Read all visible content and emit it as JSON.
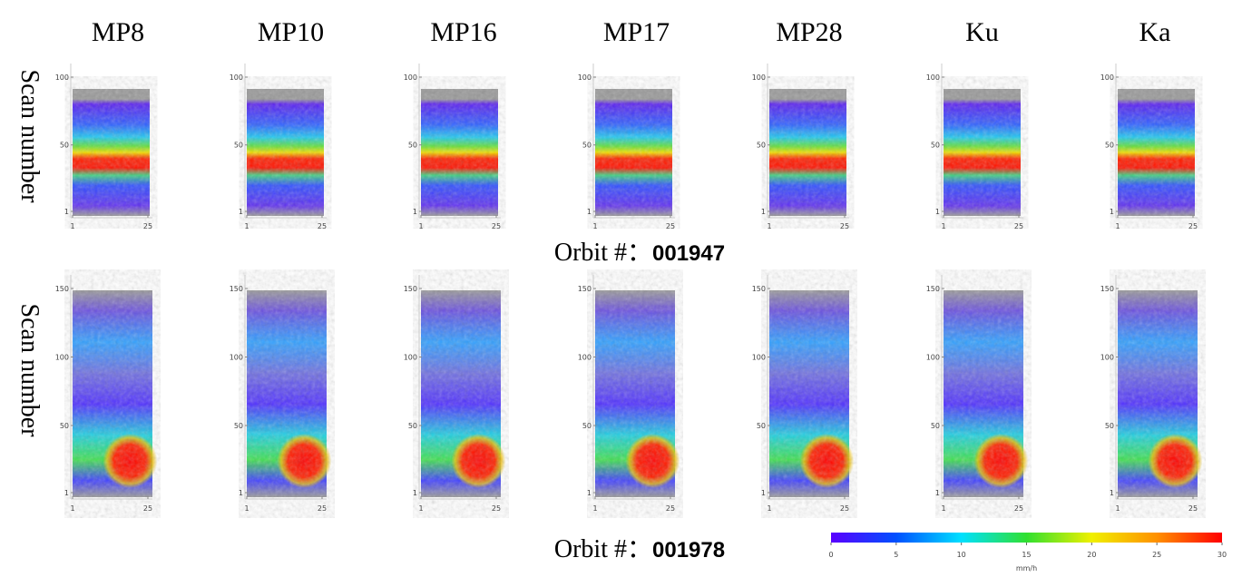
{
  "columns": [
    "MP8",
    "MP10",
    "MP16",
    "MP17",
    "MP28",
    "Ku",
    "Ka"
  ],
  "rows": [
    {
      "ylabel": "Scan number",
      "orbit_label": "Orbit #：",
      "orbit": "001947",
      "ylim": [
        1,
        100
      ],
      "yticks": [
        1,
        50,
        100
      ],
      "xlim": [
        1,
        25
      ],
      "xticks": [
        1,
        25
      ]
    },
    {
      "ylabel": "Scan number",
      "orbit_label": "Orbit #：",
      "orbit": "001978",
      "ylim": [
        1,
        150
      ],
      "yticks": [
        1,
        50,
        100,
        150
      ],
      "xlim": [
        1,
        25
      ],
      "xticks": [
        1,
        25
      ]
    }
  ],
  "colorbar": {
    "lim": [
      0,
      30
    ],
    "ticks": [
      0,
      5,
      10,
      15,
      20,
      25,
      30
    ],
    "label": "mm/h",
    "colors": [
      "#5a00ff",
      "#0050ff",
      "#00e0ff",
      "#30e030",
      "#f0f000",
      "#ff9000",
      "#ff0000"
    ]
  }
}
